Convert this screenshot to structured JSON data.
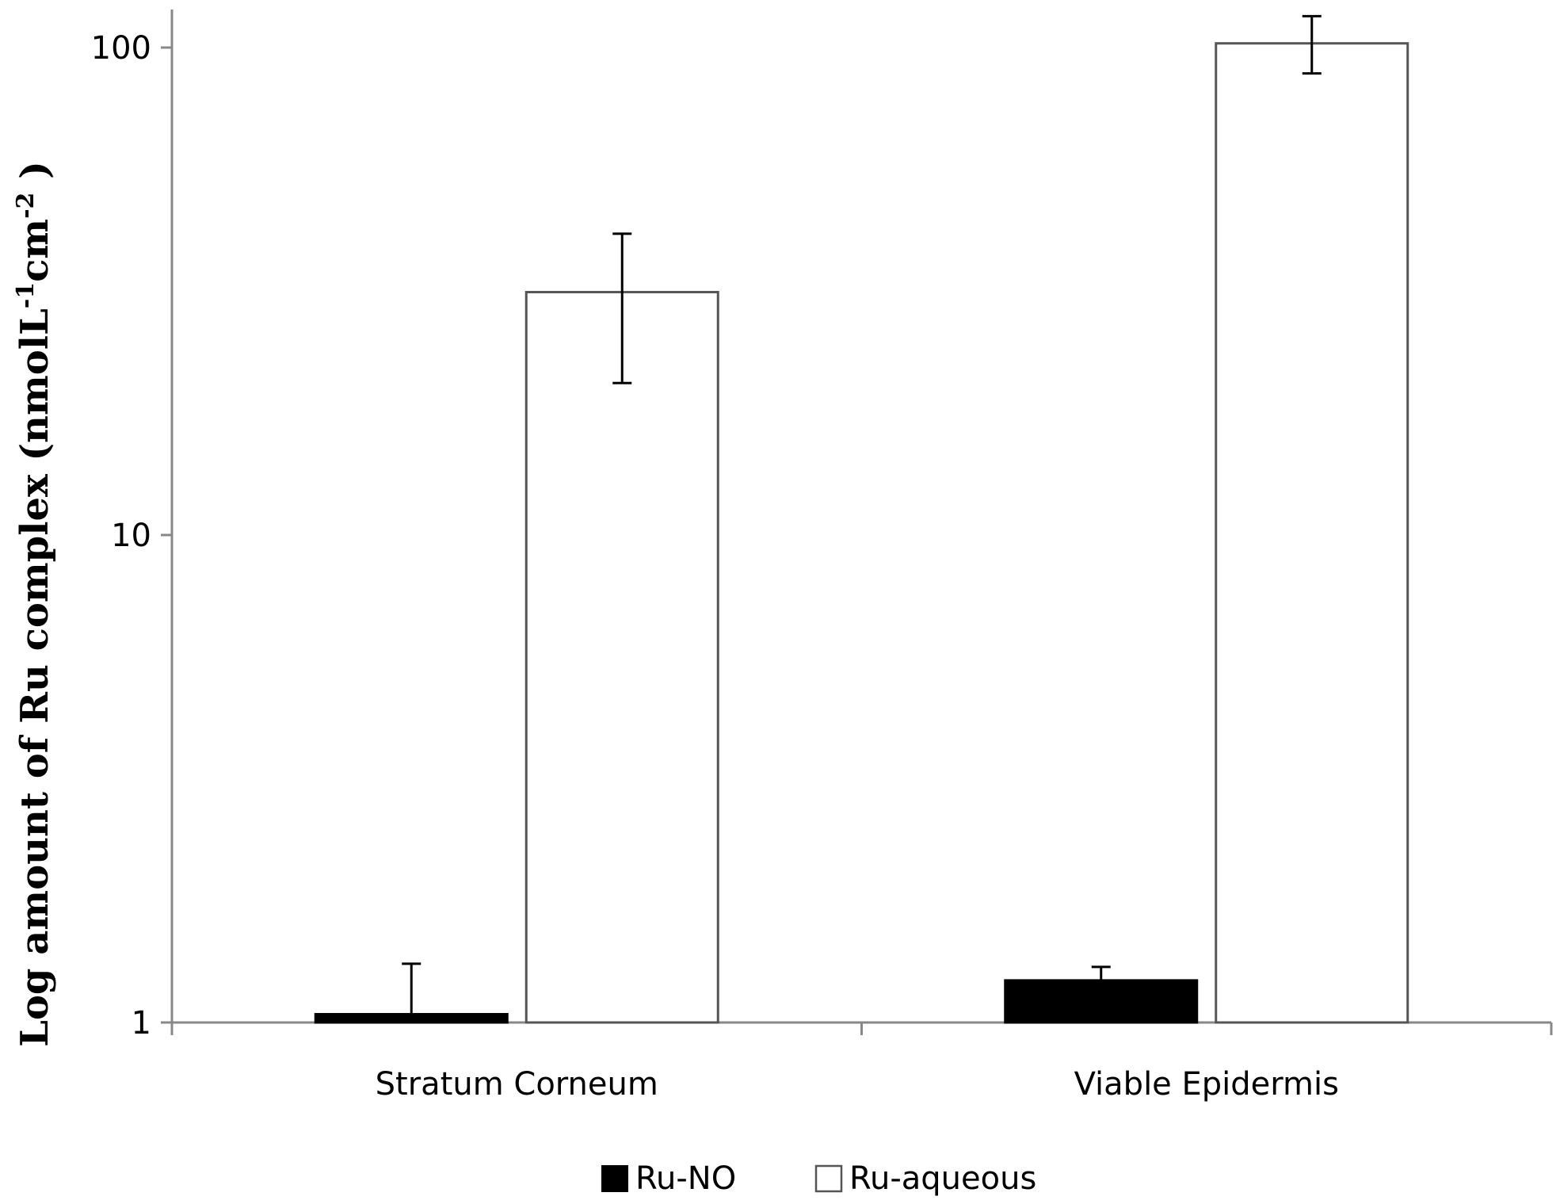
{
  "chart_data": {
    "type": "bar",
    "title": "",
    "xlabel": "",
    "ylabel": {
      "main": "Log amount  of Ru complex  (nmolL",
      "sup1": "-1",
      "mid": "cm",
      "sup2": "-2",
      "end": " )"
    },
    "yscale": "log",
    "ylim": [
      1,
      100
    ],
    "yticks": [
      {
        "value": 1,
        "label": "1"
      },
      {
        "value": 10,
        "label": "10"
      },
      {
        "value": 100,
        "label": "100"
      }
    ],
    "categories": [
      "Stratum Corneum",
      "Viable Epidermis"
    ],
    "series": [
      {
        "name": "Ru-NO",
        "color": "#000000",
        "values": [
          1.04,
          1.22
        ],
        "error_upper": [
          1.32,
          1.3
        ],
        "error_lower": [
          1.04,
          1.22
        ]
      },
      {
        "name": "Ru-aqueous",
        "color": "#ffffff",
        "values": [
          31.5,
          102
        ],
        "error_upper": [
          41.5,
          116
        ],
        "error_lower": [
          20.5,
          88.5
        ]
      }
    ],
    "legend_position": "bottom",
    "grid": false
  }
}
